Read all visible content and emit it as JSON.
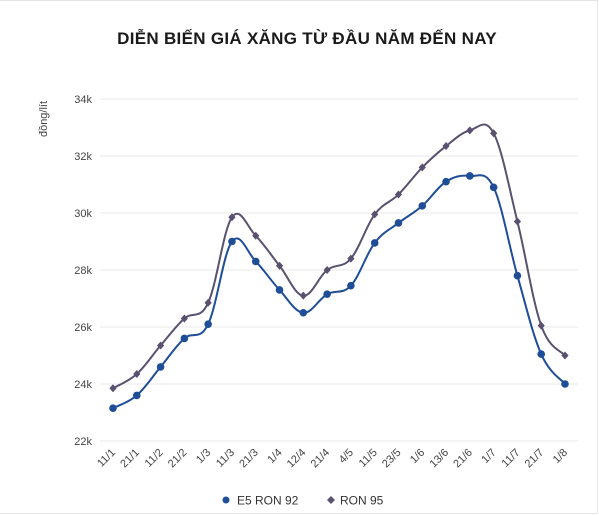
{
  "chart_data": {
    "type": "line",
    "title": "DIỄN BIẾN GIÁ XĂNG TỪ ĐẦU NĂM ĐẾN NAY",
    "ylabel": "đồng/lít",
    "xlabel": "",
    "ylim": [
      22000,
      34000
    ],
    "yticks": [
      22000,
      24000,
      26000,
      28000,
      30000,
      32000,
      34000
    ],
    "ytick_labels": [
      "22k",
      "24k",
      "26k",
      "28k",
      "30k",
      "32k",
      "34k"
    ],
    "grid": true,
    "legend_position": "bottom",
    "categories": [
      "11/1",
      "21/1",
      "11/2",
      "21/2",
      "1/3",
      "11/3",
      "21/3",
      "1/4",
      "12/4",
      "21/4",
      "4/5",
      "11/5",
      "23/5",
      "1/6",
      "13/6",
      "21/6",
      "1/7",
      "11/7",
      "21/7",
      "1/8"
    ],
    "series": [
      {
        "name": "E5 RON 92",
        "color": "#1f4e96",
        "marker": "circle",
        "values": [
          23150,
          23600,
          24600,
          25600,
          26100,
          29000,
          28300,
          27300,
          26500,
          27150,
          27450,
          28950,
          29650,
          30250,
          31100,
          31300,
          30900,
          27800,
          25050,
          24000
        ]
      },
      {
        "name": "RON 95",
        "color": "#5a5070",
        "marker": "diamond",
        "values": [
          23850,
          24350,
          25350,
          26300,
          26850,
          29850,
          29200,
          28150,
          27100,
          28000,
          28400,
          29950,
          30650,
          31600,
          32350,
          32900,
          32800,
          29700,
          26050,
          25000
        ]
      }
    ]
  }
}
